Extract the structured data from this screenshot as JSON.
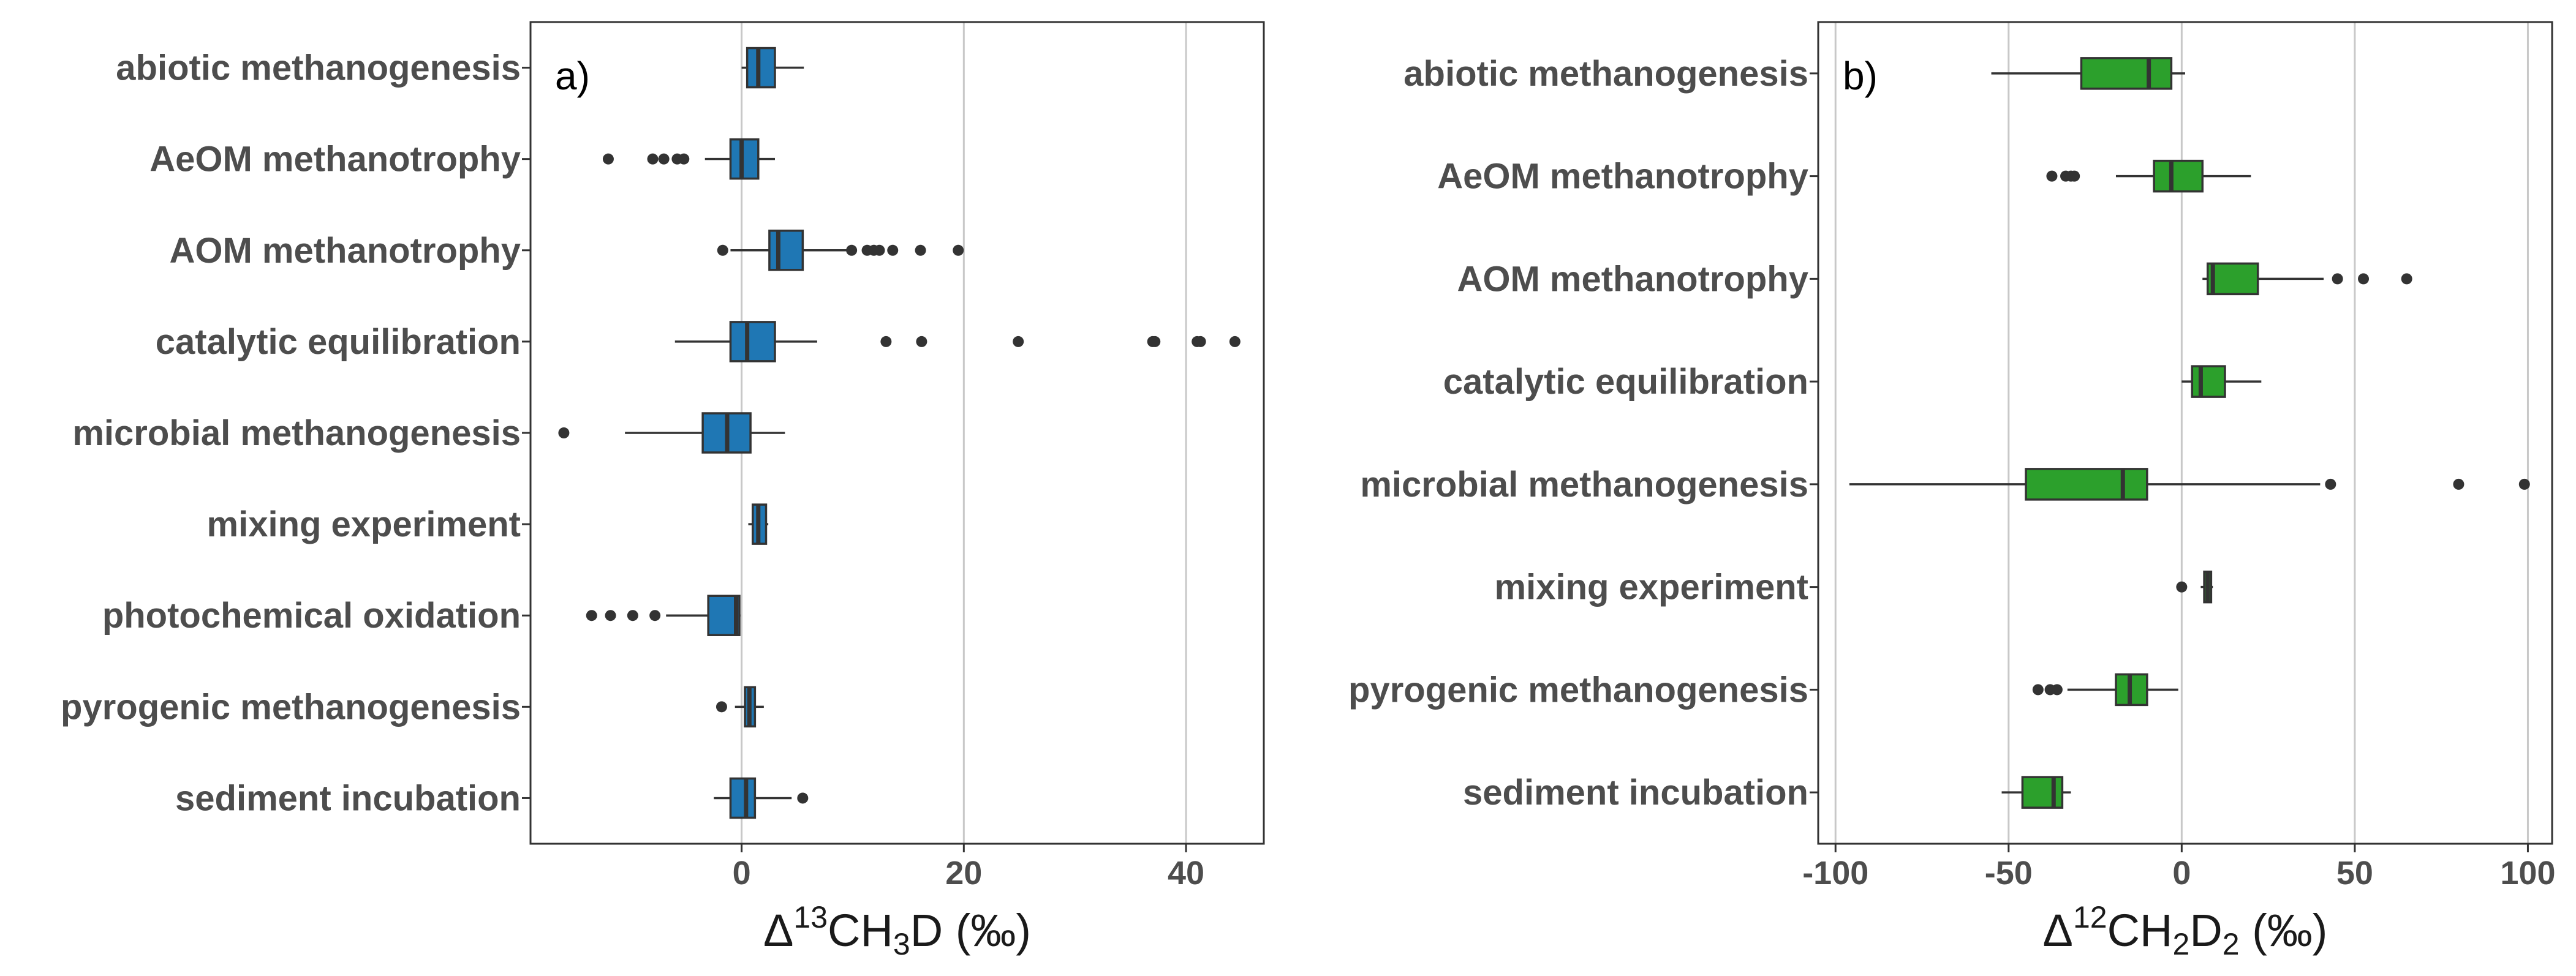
{
  "chart_data": [
    {
      "type": "boxplot",
      "panel_label": "a)",
      "orientation": "horizontal",
      "color": "#1f77b4",
      "xlabel": {
        "pre": "Δ",
        "sup": "13",
        "mid": "CH",
        "sub": "3",
        "post": "D (‰)"
      },
      "xticks": [
        0,
        20,
        40
      ],
      "xlim": [
        -19,
        47
      ],
      "grid": "vertical",
      "categories": [
        "abiotic methanogenesis",
        "AeOM methanotrophy",
        "AOM methanotrophy",
        "catalytic equilibration",
        "microbial methanogenesis",
        "mixing experiment",
        "photochemical oxidation",
        "pyrogenic methanogenesis",
        "sediment incubation"
      ],
      "boxes": [
        {
          "whisker_low": 0.0,
          "q1": 0.5,
          "median": 1.5,
          "q3": 3.0,
          "whisker_high": 5.6,
          "outliers": []
        },
        {
          "whisker_low": -3.3,
          "q1": -1.0,
          "median": 0.0,
          "q3": 1.5,
          "whisker_high": 3.0,
          "outliers": [
            -12.0,
            -8.0,
            -7.0,
            -5.8,
            -5.2
          ]
        },
        {
          "whisker_low": -1.0,
          "q1": 2.5,
          "median": 3.3,
          "q3": 5.5,
          "whisker_high": 9.5,
          "outliers": [
            -1.7,
            9.9,
            11.3,
            11.9,
            12.4,
            13.6,
            16.1,
            19.5
          ]
        },
        {
          "whisker_low": -6.0,
          "q1": -1.0,
          "median": 0.5,
          "q3": 3.0,
          "whisker_high": 6.8,
          "outliers": [
            13.0,
            16.2,
            24.9,
            37.0,
            37.2,
            41.0,
            41.3,
            44.4
          ]
        },
        {
          "whisker_low": -10.5,
          "q1": -3.5,
          "median": -1.3,
          "q3": 0.8,
          "whisker_high": 3.9,
          "outliers": [
            -16.0
          ]
        },
        {
          "whisker_low": 0.6,
          "q1": 1.0,
          "median": 1.5,
          "q3": 2.2,
          "whisker_high": 2.4,
          "outliers": []
        },
        {
          "whisker_low": -6.8,
          "q1": -3.0,
          "median": -0.5,
          "q3": -0.2,
          "whisker_high": -0.1,
          "outliers": [
            -13.5,
            -11.8,
            -9.8,
            -7.8
          ]
        },
        {
          "whisker_low": -0.6,
          "q1": 0.3,
          "median": 0.7,
          "q3": 1.2,
          "whisker_high": 2.0,
          "outliers": [
            -1.8
          ]
        },
        {
          "whisker_low": -2.5,
          "q1": -1.0,
          "median": 0.4,
          "q3": 1.2,
          "whisker_high": 4.5,
          "outliers": [
            5.5
          ]
        }
      ]
    },
    {
      "type": "boxplot",
      "panel_label": "b)",
      "orientation": "horizontal",
      "color": "#2ca02c",
      "xlabel": {
        "pre": "Δ",
        "sup": "12",
        "mid": "CH",
        "sub": "2",
        "post": "D",
        "sub2": "2",
        "post2": " (‰)"
      },
      "xticks": [
        -100,
        -50,
        0,
        50,
        100
      ],
      "xlim": [
        -105,
        107
      ],
      "grid": "vertical",
      "categories": [
        "abiotic methanogenesis",
        "AeOM methanotrophy",
        "AOM methanotrophy",
        "catalytic equilibration",
        "microbial methanogenesis",
        "mixing experiment",
        "pyrogenic methanogenesis",
        "sediment incubation"
      ],
      "boxes": [
        {
          "whisker_low": -55.0,
          "q1": -29.0,
          "median": -9.5,
          "q3": -3.0,
          "whisker_high": 1.0,
          "outliers": []
        },
        {
          "whisker_low": -19.0,
          "q1": -8.0,
          "median": -3.0,
          "q3": 6.0,
          "whisker_high": 20.0,
          "outliers": [
            -37.5,
            -33.5,
            -32.0,
            -31.0
          ]
        },
        {
          "whisker_low": 6.0,
          "q1": 7.5,
          "median": 9.0,
          "q3": 22.0,
          "whisker_high": 41.0,
          "outliers": [
            45.0,
            52.5,
            65.0
          ]
        },
        {
          "whisker_low": 0.0,
          "q1": 3.0,
          "median": 5.5,
          "q3": 12.5,
          "whisker_high": 23.0,
          "outliers": []
        },
        {
          "whisker_low": -96.0,
          "q1": -45.0,
          "median": -17.0,
          "q3": -10.0,
          "whisker_high": 40.0,
          "outliers": [
            43.0,
            80.0,
            99.0
          ]
        },
        {
          "whisker_low": 5.5,
          "q1": 6.5,
          "median": 7.5,
          "q3": 8.5,
          "whisker_high": 9.0,
          "outliers": [
            0.0
          ]
        },
        {
          "whisker_low": -33.0,
          "q1": -19.0,
          "median": -15.0,
          "q3": -10.0,
          "whisker_high": -1.0,
          "outliers": [
            -41.5,
            -38.0,
            -36.0
          ]
        },
        {
          "whisker_low": -52.0,
          "q1": -46.0,
          "median": -37.0,
          "q3": -34.5,
          "whisker_high": -32.0,
          "outliers": []
        }
      ]
    }
  ]
}
